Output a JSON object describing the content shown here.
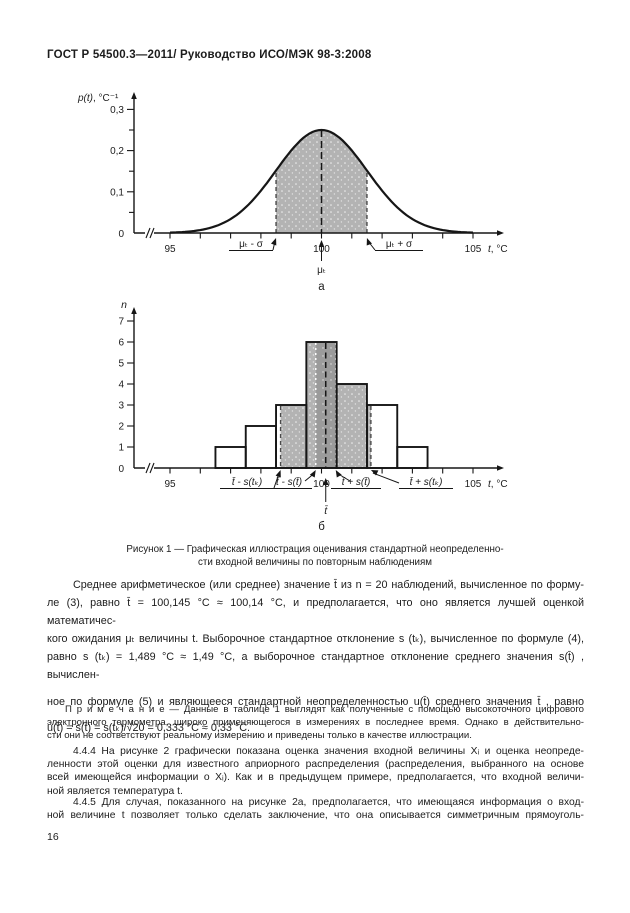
{
  "header": {
    "title": "ГОСТ Р 54500.3—2011/ Руководство ИСО/МЭК 98-3:2008"
  },
  "figure": {
    "caption_lines": [
      "Рисунок 1 — Графическая  иллюстрация  оценивания  стандартной  неопределенно-",
      "сти  входной  величины по повторным наблюдениям"
    ]
  },
  "chart_data": [
    {
      "type": "area",
      "subfigure_label": "а",
      "ylabel": "p(t), °С⁻¹",
      "xlabel": "t, °С",
      "origin_label": "0",
      "x_tick_labels": [
        "95",
        "100",
        "105"
      ],
      "x_tick_values": [
        95,
        100,
        105
      ],
      "x_minor_tick_step": 1,
      "xlim": [
        95,
        105
      ],
      "ylim": [
        0,
        0.32
      ],
      "y_tick_labels": [
        "0,1",
        "0,2",
        "0,3"
      ],
      "y_tick_values": [
        0.1,
        0.2,
        0.3
      ],
      "distribution": {
        "shape": "normal",
        "mean": 100,
        "sigma": 1.5,
        "peak_density": 0.25
      },
      "shaded_region": {
        "from": 98.5,
        "to": 101.5
      },
      "center_line_x": 100,
      "annotations": [
        {
          "label": "μₜ - σ",
          "points_to": 98.5
        },
        {
          "label": "μₜ + σ",
          "points_to": 101.5
        },
        {
          "label": "μₜ",
          "points_to": 100
        }
      ],
      "colors": {
        "fill_light": "#b3b3b3",
        "curve": "#161616"
      }
    },
    {
      "type": "histogram",
      "subfigure_label": "б",
      "ylabel": "n",
      "xlabel": "t, °С",
      "origin_label": "0",
      "bin_start": 96.5,
      "bin_width": 1,
      "counts": [
        1,
        2,
        3,
        6,
        4,
        3,
        1
      ],
      "x_tick_labels": [
        "95",
        "100",
        "105"
      ],
      "x_tick_values": [
        95,
        100,
        105
      ],
      "x_minor_tick_step": 1,
      "y_tick_labels": [
        "1",
        "2",
        "3",
        "4",
        "5",
        "6",
        "7"
      ],
      "y_tick_values": [
        1,
        2,
        3,
        4,
        5,
        6,
        7
      ],
      "mean": 100.14,
      "shaded_light": {
        "from": 98.65,
        "to": 101.63
      },
      "shaded_dark": {
        "from": 99.81,
        "to": 100.47
      },
      "white_dotted_lines": [
        99.81,
        100.47
      ],
      "dashed_boundary_lines": [
        98.65,
        101.63
      ],
      "annotations": [
        {
          "label": "t̄ - s(tₖ)",
          "points_to": 98.65
        },
        {
          "label": "t̄ - s(t̄)",
          "points_to": 99.81
        },
        {
          "label": "t̄ + s(t̄)",
          "points_to": 100.47
        },
        {
          "label": "t̄ + s(tₖ)",
          "points_to": 101.63
        },
        {
          "label": "t̄",
          "points_to": 100.14
        }
      ],
      "colors": {
        "fill_light": "#b3b3b3",
        "fill_dark": "#9b9b9b",
        "bar_stroke": "#161616"
      }
    }
  ],
  "body": {
    "para1_lines": [
      "Среднее арифметическое (или среднее) значение t̄ из n = 20 наблюдений, вычисленное по форму-",
      "ле (3), равно t̄ = 100,145 °С ≈ 100,14 °С, и предполагается, что оно является лучшей оценкой математичес-",
      "кого ожидания μₜ величины t. Выборочное стандартное отклонение s (tₖ), вычисленное по формуле (4),",
      "равно s (tₖ) = 1,489 °С ≈ 1,49 °С, а выборочное стандартное отклонение среднего значения s(t̄) , вычислен-",
      "ное по формуле (5) и являющееся стандартной неопределенностью u(t̄) среднего значения t̄ , равно",
      "u(t̄) = s(t̄) = s(tₖ)/√20 = 0,333 °С ≈ 0,33 °С."
    ],
    "note_lines": [
      "П р и м е ч а н и е — Данные в таблице 1 выглядят как полученные с помощью высокоточного цифрового",
      "электронного термометра, широко применяющегося в измерениях в последнее время. Однако в действительно-",
      "сти они не соответствуют реальному измерению и приведены только в качестве иллюстрации."
    ],
    "para_444_lines": [
      "4.4.4 На рисунке 2 графически показана оценка значения входной величины Хᵢ и оценка неопреде-",
      "ленности этой оценки для известного априорного распределения (распределения, выбранного на основе",
      "всей имеющейся информации о Хᵢ). Как и в предыдущем примере, предполагается, что входной величи-",
      "ной является температура t."
    ],
    "para_445_lines": [
      "4.4.5 Для случая, показанного на рисунке 2а, предполагается, что имеющаяся информация о вход-",
      "ной величине t позволяет только сделать заключение, что она описывается симметричным прямоуголь-"
    ]
  },
  "footer": {
    "page_number": "16"
  }
}
